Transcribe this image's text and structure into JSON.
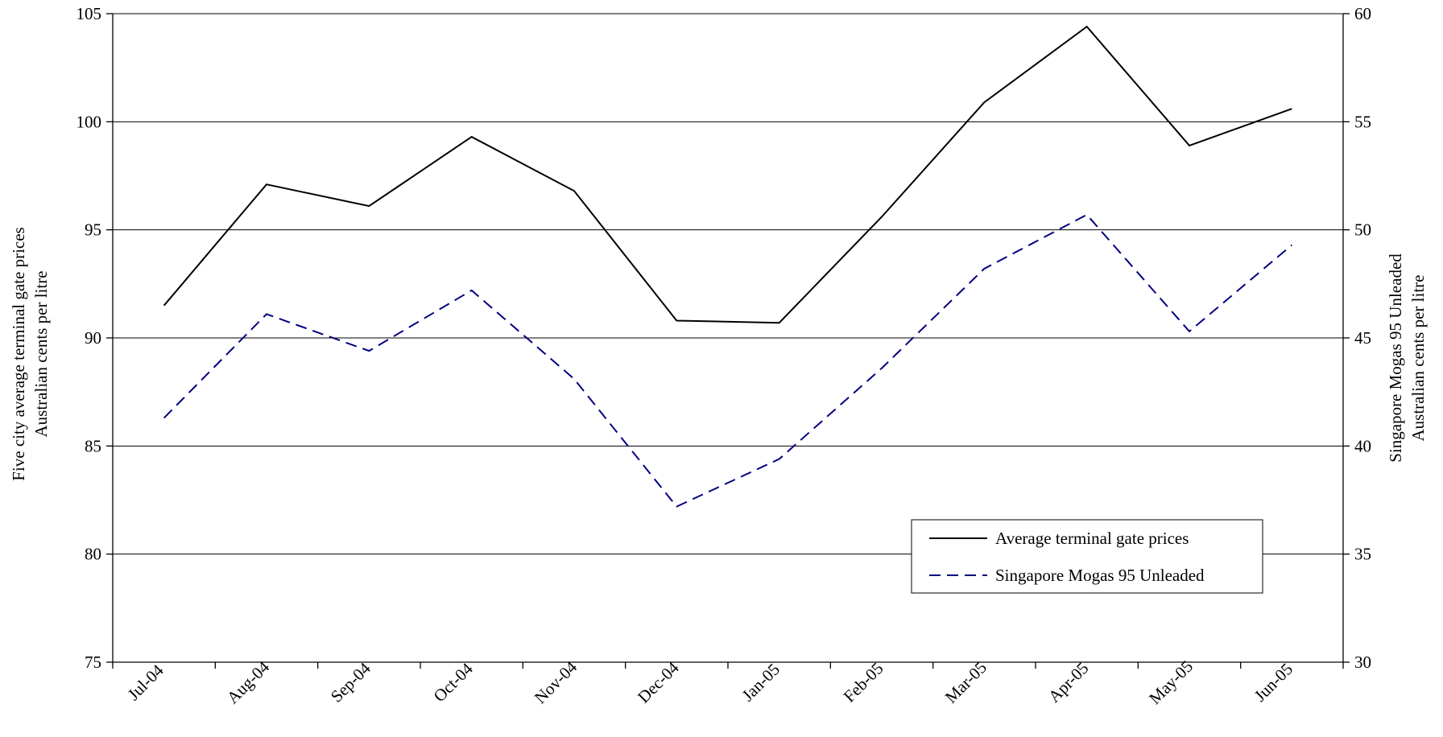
{
  "chart_data": {
    "type": "line",
    "categories": [
      "Jul-04",
      "Aug-04",
      "Sep-04",
      "Oct-04",
      "Nov-04",
      "Dec-04",
      "Jan-05",
      "Feb-05",
      "Mar-05",
      "Apr-05",
      "May-05",
      "Jun-05"
    ],
    "series": [
      {
        "name": "Average terminal gate prices",
        "axis": "left",
        "color": "#000000",
        "style": "solid",
        "values": [
          91.5,
          97.1,
          96.1,
          99.3,
          96.8,
          90.8,
          90.7,
          95.6,
          100.9,
          104.4,
          98.9,
          100.6
        ]
      },
      {
        "name": "Singapore Mogas 95 Unleaded",
        "axis": "right",
        "color": "#000080",
        "style": "dashed",
        "values": [
          41.3,
          46.1,
          44.4,
          47.2,
          43.1,
          37.2,
          39.4,
          43.6,
          48.2,
          50.7,
          45.3,
          49.3
        ]
      }
    ],
    "y_left": {
      "label_lines": [
        "Five city average terminal gate prices",
        "Australian cents per litre"
      ],
      "ylim": [
        75,
        105
      ],
      "ticks": [
        75,
        80,
        85,
        90,
        95,
        100,
        105
      ]
    },
    "y_right": {
      "label_lines": [
        "Singapore Mogas 95 Unleaded",
        "Australian cents per litre"
      ],
      "ylim": [
        30,
        60
      ],
      "ticks": [
        30,
        35,
        40,
        45,
        50,
        55,
        60
      ]
    },
    "grid": true,
    "legend": {
      "position": "lower-right-inside"
    }
  }
}
